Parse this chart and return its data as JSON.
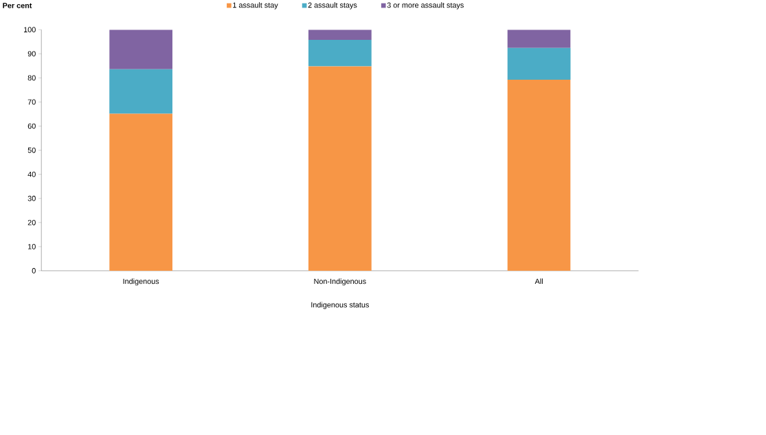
{
  "chart_data": {
    "type": "bar",
    "stacked": true,
    "xlabel": "Indigenous status",
    "ylabel": "Per cent",
    "categories": [
      "Indigenous",
      "Non-Indigenous",
      "All"
    ],
    "series": [
      {
        "name": "1 assault stay",
        "color": "#f79646",
        "values": [
          65.1,
          84.8,
          79.2
        ]
      },
      {
        "name": "2 assault stays",
        "color": "#4bacc6",
        "values": [
          18.5,
          11.0,
          13.2
        ]
      },
      {
        "name": "3 or more assault stays",
        "color": "#8064a2",
        "values": [
          16.4,
          4.2,
          7.6
        ]
      }
    ],
    "ylim": [
      0,
      100
    ],
    "yticks": [
      0,
      10,
      20,
      30,
      40,
      50,
      60,
      70,
      80,
      90,
      100
    ],
    "grid": false,
    "legend": "top"
  }
}
